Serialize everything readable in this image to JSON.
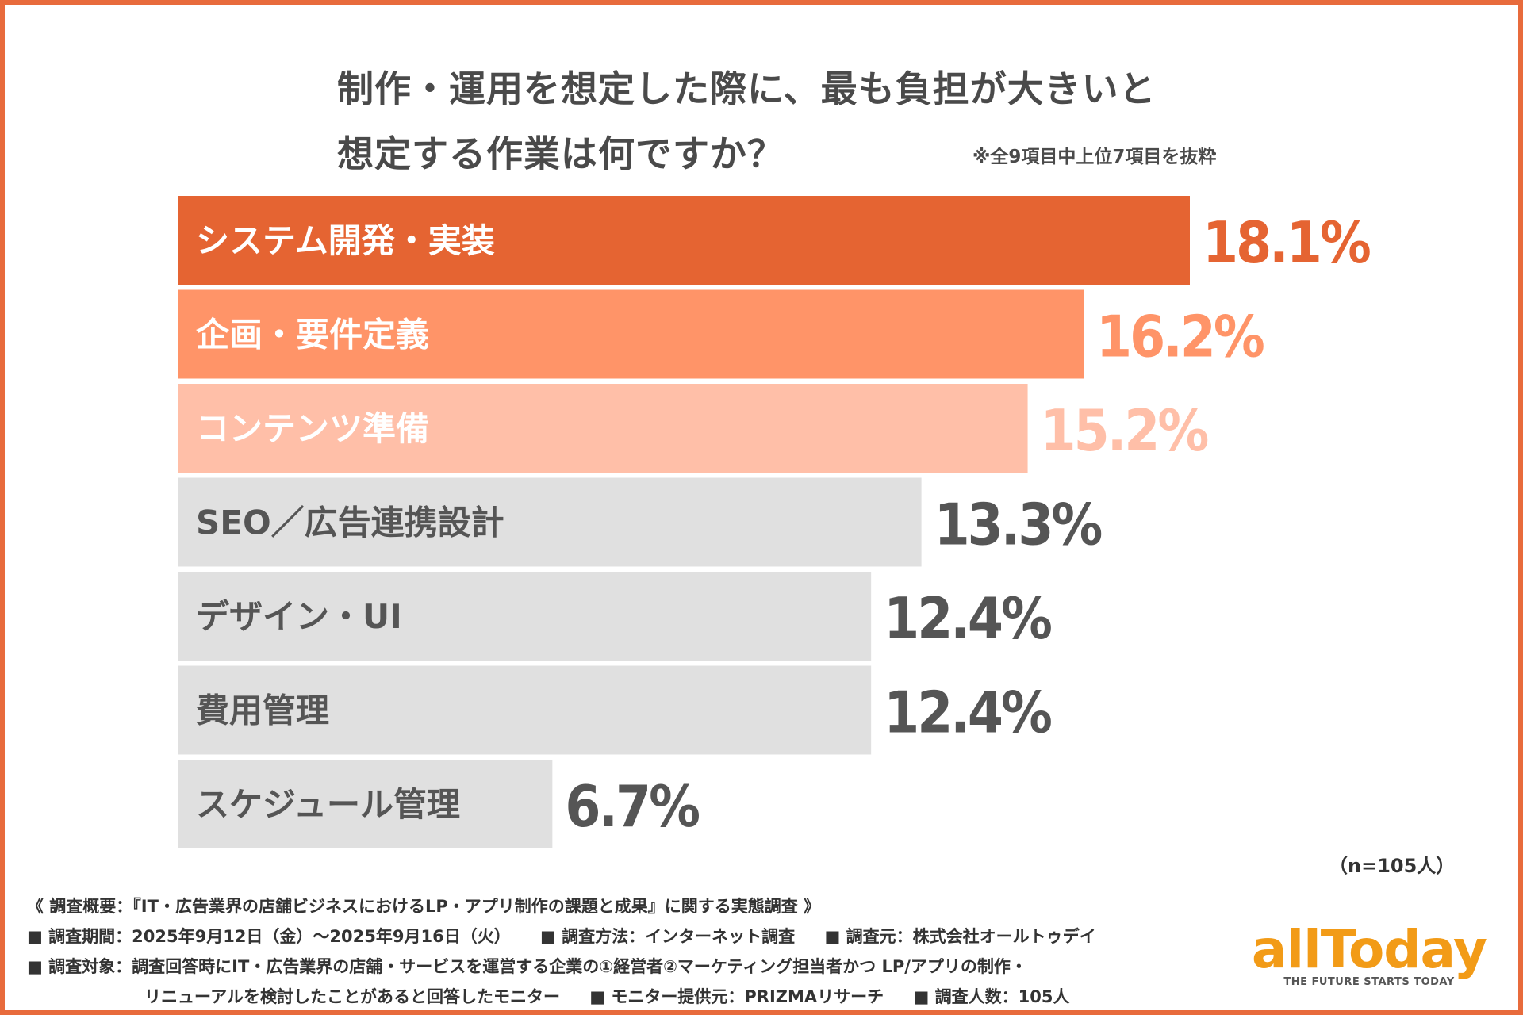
{
  "title": {
    "line1": "制作・運用を想定した際に、最も負担が大きいと",
    "line2": "想定する作業は何ですか？",
    "note": "※全9項目中上位7項目を抜粋"
  },
  "chart_data": {
    "type": "bar",
    "orientation": "horizontal",
    "categories": [
      "システム開発・実装",
      "企画・要件定義",
      "コンテンツ準備",
      "SEO／広告連携設計",
      "デザイン・UI",
      "費用管理",
      "スケジュール管理"
    ],
    "values": [
      18.1,
      16.2,
      15.2,
      13.3,
      12.4,
      12.4,
      6.7
    ],
    "value_labels": [
      "18.1%",
      "16.2%",
      "15.2%",
      "13.3%",
      "12.4%",
      "12.4%",
      "6.7%"
    ],
    "bar_colors": [
      "#e56432",
      "#ff9468",
      "#ffbfa8",
      "#e0e0e0",
      "#e0e0e0",
      "#e0e0e0",
      "#e0e0e0"
    ],
    "label_colors": [
      "#ffffff",
      "#ffffff",
      "#ffffff",
      "#555555",
      "#555555",
      "#555555",
      "#555555"
    ],
    "value_colors": [
      "#e56432",
      "#ff9468",
      "#ffbfa8",
      "#555555",
      "#555555",
      "#555555",
      "#555555"
    ],
    "unit": "%",
    "xlim": [
      0,
      18.1
    ]
  },
  "sample": "（n=105人）",
  "footer": {
    "survey": "《 調査概要：『IT・広告業界の店舗ビジネスにおけるLP・アプリ制作の課題と成果』に関する実態調査 》",
    "period": "■ 調査期間：2025年9月12日（金）〜2025年9月16日（火）",
    "method": "■ 調査方法：インターネット調査",
    "source": "■ 調査元：株式会社オールトゥデイ",
    "target1": "■ 調査対象：調査回答時にIT・広告業界の店舗・サービスを運営する企業の①経営者②マーケティング担当者かつ LP/アプリの制作・",
    "target2": "リニューアルを検討したことがあると回答したモニター",
    "provider": "■ モニター提供元：PRIZMAリサーチ",
    "count": "■ 調査人数：105人"
  },
  "logo": {
    "word": "allToday",
    "tagline": "THE FUTURE STARTS TODAY",
    "color": "#f29b17"
  }
}
